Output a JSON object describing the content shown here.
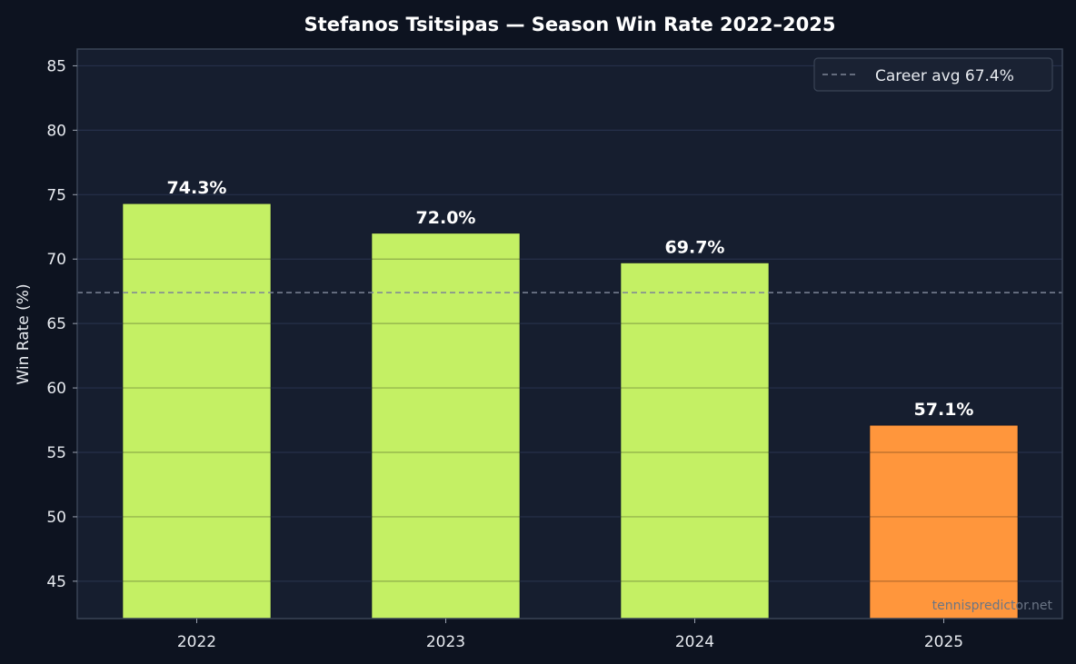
{
  "chart_data": {
    "type": "bar",
    "title": "Stefanos Tsitsipas — Season Win Rate 2022–2025",
    "xlabel": "",
    "ylabel": "Win Rate (%)",
    "categories": [
      "2022",
      "2023",
      "2024",
      "2025"
    ],
    "values": [
      74.3,
      72.0,
      69.7,
      57.1
    ],
    "data_labels": [
      "74.3%",
      "72.0%",
      "69.7%",
      "57.1%"
    ],
    "bar_colors": [
      "#c4f064",
      "#c4f064",
      "#c4f064",
      "#ff963c"
    ],
    "ylim": [
      42.1,
      86.3
    ],
    "yticks": [
      45,
      50,
      55,
      60,
      65,
      70,
      75,
      80,
      85
    ],
    "ytick_labels": [
      "45",
      "50",
      "55",
      "60",
      "65",
      "70",
      "75",
      "80",
      "85"
    ],
    "grid": true,
    "reference_line": {
      "value": 67.4,
      "label": "Career avg 67.4%",
      "style": "dashed",
      "color": "#7c8596"
    },
    "legend": {
      "position": "top-right",
      "entries": [
        "Career avg 67.4%"
      ]
    },
    "watermark": "tennispredictor.net"
  },
  "colors": {
    "figure_bg": "#0d1320",
    "plot_bg": "#161e2f",
    "grid": "#26304a",
    "axis": "#3a4456"
  }
}
